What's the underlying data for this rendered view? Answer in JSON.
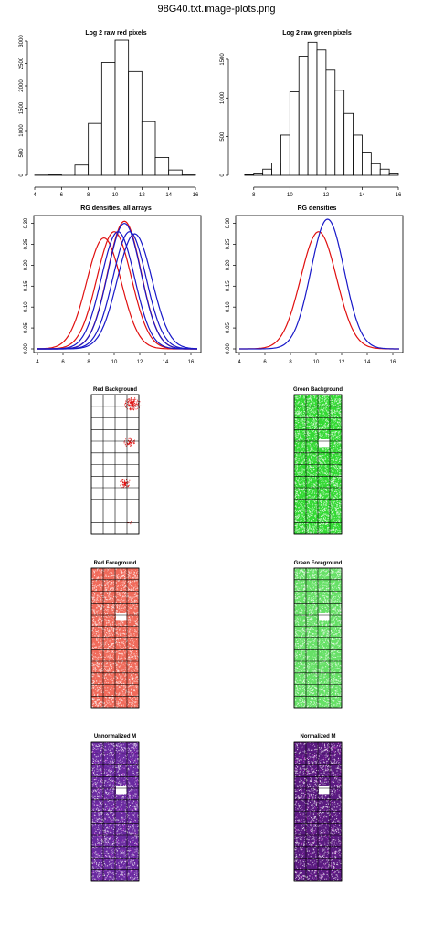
{
  "page": {
    "title": "98G40.txt.image-plots.png"
  },
  "colors": {
    "red": "#e01010",
    "blue": "#1818c8",
    "navy": "#202080",
    "green_speck": "#1aa31a",
    "green_bg": "#33d933",
    "green_fg": "#66e066",
    "red_fg": "#f06a5a",
    "purple": "#6a2aa0",
    "purple_dark": "#5a1a80",
    "grid": "#000000"
  },
  "chart_data": [
    {
      "type": "bar",
      "title": "Log 2 raw red pixels",
      "bin_edges": [
        4,
        5,
        6,
        7,
        8,
        9,
        10,
        11,
        12,
        13,
        14,
        15,
        16
      ],
      "values": [
        5,
        10,
        30,
        230,
        1160,
        2520,
        3020,
        2320,
        1200,
        400,
        120,
        20
      ],
      "xlim": [
        4,
        16
      ],
      "ylim": [
        0,
        3000
      ],
      "xticks": [
        "4",
        "6",
        "8",
        "10",
        "12",
        "14",
        "16"
      ],
      "yticks": [
        "0",
        "500",
        "1000",
        "1500",
        "2000",
        "2500",
        "3000"
      ]
    },
    {
      "type": "bar",
      "title": "Log 2 raw green pixels",
      "bin_edges": [
        7.5,
        8,
        8.5,
        9,
        9.5,
        10,
        10.5,
        11,
        11.5,
        12,
        12.5,
        13,
        13.5,
        14,
        14.5,
        15,
        15.5,
        16
      ],
      "values": [
        10,
        30,
        80,
        160,
        520,
        1080,
        1540,
        1720,
        1620,
        1360,
        1100,
        800,
        520,
        300,
        150,
        80,
        30
      ],
      "xlim": [
        7,
        16
      ],
      "ylim": [
        0,
        1700
      ],
      "xticks": [
        "8",
        "10",
        "12",
        "14",
        "16"
      ],
      "yticks": [
        "0",
        "500",
        "1000",
        "1500"
      ]
    },
    {
      "type": "line",
      "title": "RG densities, all arrays",
      "xlim": [
        4,
        16.5
      ],
      "ylim": [
        0,
        0.31
      ],
      "xticks": [
        "4",
        "6",
        "8",
        "10",
        "12",
        "14",
        "16"
      ],
      "yticks": [
        "0.00",
        "0.05",
        "0.10",
        "0.15",
        "0.20",
        "0.25",
        "0.30"
      ],
      "series": [
        {
          "color": "red",
          "mu": 9.2,
          "sd": 1.35,
          "peak": 0.265
        },
        {
          "color": "red",
          "mu": 10.0,
          "sd": 1.35,
          "peak": 0.28
        },
        {
          "color": "red",
          "mu": 10.8,
          "sd": 1.3,
          "peak": 0.305
        },
        {
          "color": "blue",
          "mu": 10.3,
          "sd": 1.3,
          "peak": 0.28
        },
        {
          "color": "blue",
          "mu": 10.8,
          "sd": 1.3,
          "peak": 0.3
        },
        {
          "color": "blue",
          "mu": 11.2,
          "sd": 1.3,
          "peak": 0.28
        },
        {
          "color": "blue",
          "mu": 11.6,
          "sd": 1.35,
          "peak": 0.275
        }
      ]
    },
    {
      "type": "line",
      "title": "RG densities",
      "xlim": [
        4,
        16.5
      ],
      "ylim": [
        0,
        0.31
      ],
      "xticks": [
        "4",
        "6",
        "8",
        "10",
        "12",
        "14",
        "16"
      ],
      "yticks": [
        "0.00",
        "0.05",
        "0.10",
        "0.15",
        "0.20",
        "0.25",
        "0.30"
      ],
      "series": [
        {
          "color": "red",
          "mu": 10.2,
          "sd": 1.4,
          "peak": 0.28
        },
        {
          "color": "blue",
          "mu": 10.9,
          "sd": 1.3,
          "peak": 0.31
        }
      ]
    }
  ],
  "images": [
    {
      "title": "Red Background"
    },
    {
      "title": "Green Background"
    },
    {
      "title": "Red Foreground"
    },
    {
      "title": "Green Foreground"
    },
    {
      "title": "Unnormalized M"
    },
    {
      "title": "Normalized M"
    }
  ]
}
